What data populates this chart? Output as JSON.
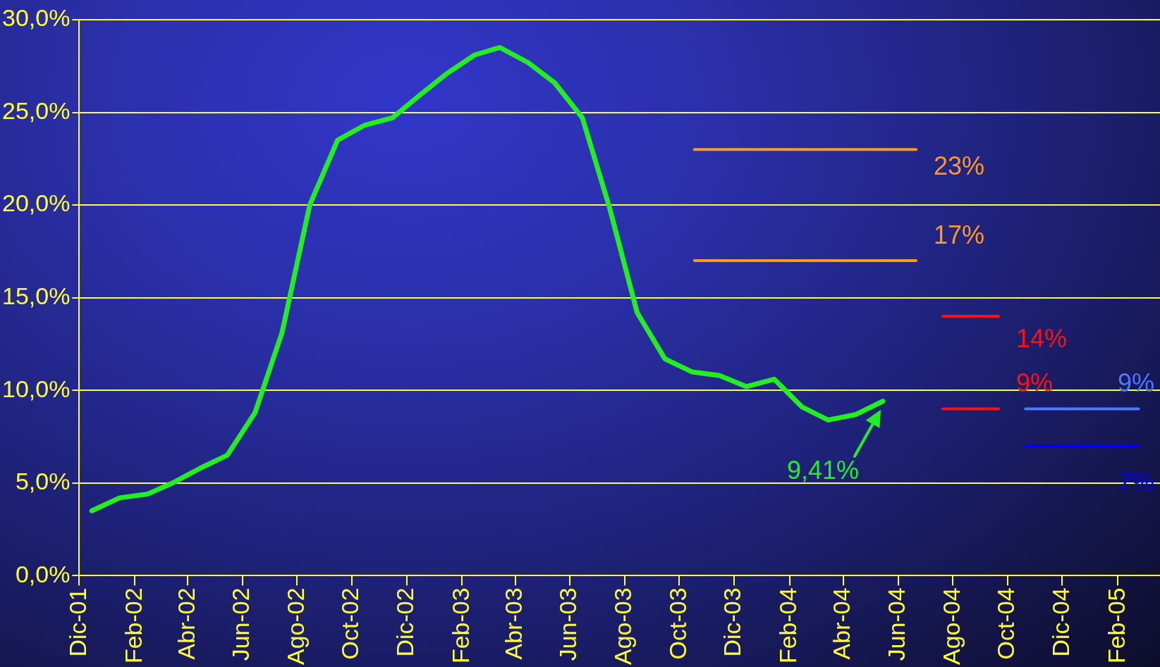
{
  "chart_data": {
    "type": "line",
    "xlim": [
      "2001-12",
      "2005-03-20"
    ],
    "xticks": [
      {
        "value": "2001-12",
        "label": "Dic-01"
      },
      {
        "value": "2002-02",
        "label": "Feb-02"
      },
      {
        "value": "2002-04",
        "label": "Abr-02"
      },
      {
        "value": "2002-06",
        "label": "Jun-02"
      },
      {
        "value": "2002-08",
        "label": "Ago-02"
      },
      {
        "value": "2002-10",
        "label": "Oct-02"
      },
      {
        "value": "2002-12",
        "label": "Dic-02"
      },
      {
        "value": "2003-02",
        "label": "Feb-03"
      },
      {
        "value": "2003-04",
        "label": "Abr-03"
      },
      {
        "value": "2003-06",
        "label": "Jun-03"
      },
      {
        "value": "2003-08",
        "label": "Ago-03"
      },
      {
        "value": "2003-10",
        "label": "Oct-03"
      },
      {
        "value": "2003-12",
        "label": "Dic-03"
      },
      {
        "value": "2004-02",
        "label": "Feb-04"
      },
      {
        "value": "2004-04",
        "label": "Abr-04"
      },
      {
        "value": "2004-06",
        "label": "Jun-04"
      },
      {
        "value": "2004-08",
        "label": "Ago-04"
      },
      {
        "value": "2004-10",
        "label": "Oct-04"
      },
      {
        "value": "2004-12",
        "label": "Dic-04"
      },
      {
        "value": "2005-02",
        "label": "Feb-05"
      }
    ],
    "ylim": [
      0,
      30
    ],
    "yticks": [
      {
        "value": 0,
        "label": "0,0%"
      },
      {
        "value": 5,
        "label": "5,0%"
      },
      {
        "value": 10,
        "label": "10,0%"
      },
      {
        "value": 15,
        "label": "15,0%"
      },
      {
        "value": 20,
        "label": "20,0%"
      },
      {
        "value": 25,
        "label": "25,0%"
      },
      {
        "value": 30,
        "label": "30,0%"
      }
    ],
    "grid": "y",
    "legend": false,
    "marker": "none",
    "line_style": "solid",
    "series": [
      {
        "color": "#22ee22",
        "x": [
          "2001-12-15",
          "2002-01-15",
          "2002-02-15",
          "2002-03-15",
          "2002-04-15",
          "2002-05-15",
          "2002-06-15",
          "2002-07-15",
          "2002-08-15",
          "2002-09-15",
          "2002-10-15",
          "2002-11-15",
          "2002-12-15",
          "2003-01-15",
          "2003-02-15",
          "2003-03-15",
          "2003-04-15",
          "2003-05-15",
          "2003-06-15",
          "2003-07-15",
          "2003-08-15",
          "2003-09-15",
          "2003-10-15",
          "2003-11-15",
          "2003-12-15",
          "2004-01-15",
          "2004-02-15",
          "2004-03-15",
          "2004-04-15",
          "2004-05-15"
        ],
        "values": [
          3.5,
          4.2,
          4.4,
          5.0,
          5.8,
          6.5,
          8.8,
          13.1,
          20.0,
          23.5,
          24.3,
          24.7,
          25.9,
          27.1,
          28.1,
          28.5,
          27.7,
          26.6,
          24.7,
          19.9,
          14.2,
          11.7,
          11.0,
          10.8,
          10.2,
          10.6,
          9.1,
          8.4,
          8.7,
          9.41
        ]
      },
      {
        "color": "#ff9922",
        "x": [
          "2003-10-18",
          "2004-06-21"
        ],
        "values": [
          23,
          23
        ],
        "value_labels": [
          null,
          "23%"
        ]
      },
      {
        "color": "#ff9922",
        "x": [
          "2003-10-18",
          "2004-06-21"
        ],
        "values": [
          17,
          17
        ],
        "value_labels": [
          null,
          "17%"
        ]
      },
      {
        "color": "#ff1111",
        "x": [
          "2004-07-21",
          "2004-09-21"
        ],
        "values": [
          14,
          14
        ],
        "value_labels": [
          null,
          "14%"
        ]
      },
      {
        "color": "#ff1111",
        "x": [
          "2004-07-21",
          "2004-09-21"
        ],
        "values": [
          9,
          9
        ],
        "value_labels": [
          null,
          "9%"
        ]
      },
      {
        "color": "#4a78ff",
        "x": [
          "2004-10-21",
          "2005-02-24"
        ],
        "values": [
          9,
          9
        ],
        "value_labels": [
          null,
          "9%"
        ]
      },
      {
        "color": "#0000ff",
        "x": [
          "2004-10-21",
          "2005-02-24"
        ],
        "values": [
          7,
          7
        ],
        "value_labels": [
          null,
          "7%"
        ]
      }
    ],
    "annotations": [
      {
        "text": "9,41%",
        "x": "2004-05-15",
        "y": 9.41
      }
    ]
  }
}
